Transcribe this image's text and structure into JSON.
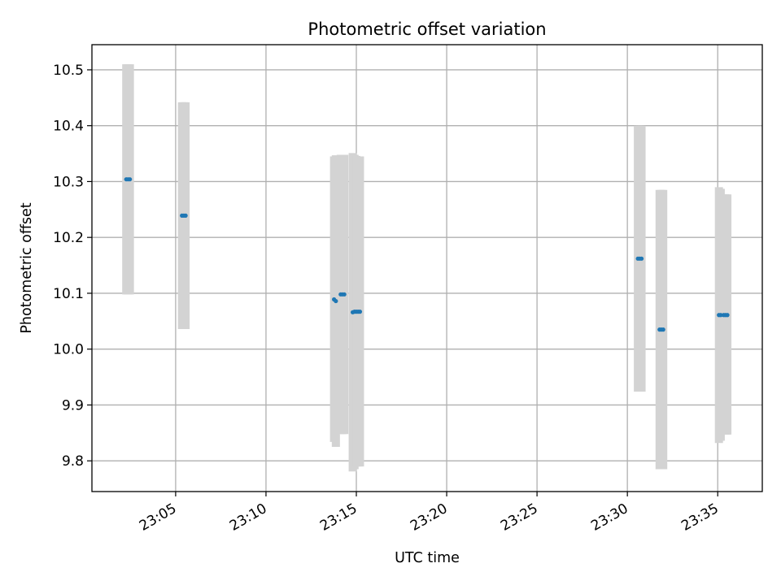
{
  "chart_data": {
    "type": "scatter",
    "title": "Photometric offset variation",
    "xlabel": "UTC time",
    "ylabel": "Photometric offset",
    "xlim": [
      "23:00:22",
      "23:37:28"
    ],
    "ylim": [
      9.745,
      10.545
    ],
    "x_ticks": [
      "23:05",
      "23:10",
      "23:15",
      "23:20",
      "23:25",
      "23:30",
      "23:35"
    ],
    "y_ticks": [
      "9.8",
      "9.9",
      "10.0",
      "10.1",
      "10.2",
      "10.3",
      "10.4",
      "10.5"
    ],
    "grid": true,
    "marker_color": "#1f77b4",
    "errorbar_color": "#d3d3d3",
    "points": [
      {
        "t": "23:02:16",
        "y": 10.304,
        "err_low": 10.098,
        "err_high": 10.51
      },
      {
        "t": "23:02:22",
        "y": 10.304,
        "err_low": 10.098,
        "err_high": 10.51
      },
      {
        "t": "23:02:28",
        "y": 10.304,
        "err_low": 10.098,
        "err_high": 10.51
      },
      {
        "t": "23:05:21",
        "y": 10.239,
        "err_low": 10.036,
        "err_high": 10.442
      },
      {
        "t": "23:05:27",
        "y": 10.239,
        "err_low": 10.036,
        "err_high": 10.442
      },
      {
        "t": "23:05:33",
        "y": 10.239,
        "err_low": 10.036,
        "err_high": 10.442
      },
      {
        "t": "23:13:46",
        "y": 10.089,
        "err_low": 9.834,
        "err_high": 10.345
      },
      {
        "t": "23:13:52",
        "y": 10.086,
        "err_low": 9.825,
        "err_high": 10.347
      },
      {
        "t": "23:14:08",
        "y": 10.098,
        "err_low": 9.848,
        "err_high": 10.348
      },
      {
        "t": "23:14:14",
        "y": 10.098,
        "err_low": 9.848,
        "err_high": 10.348
      },
      {
        "t": "23:14:20",
        "y": 10.098,
        "err_low": 9.848,
        "err_high": 10.348
      },
      {
        "t": "23:14:48",
        "y": 10.066,
        "err_low": 9.781,
        "err_high": 10.351
      },
      {
        "t": "23:14:54",
        "y": 10.067,
        "err_low": 9.785,
        "err_high": 10.348
      },
      {
        "t": "23:15:00",
        "y": 10.067,
        "err_low": 9.79,
        "err_high": 10.346
      },
      {
        "t": "23:15:06",
        "y": 10.067,
        "err_low": 9.79,
        "err_high": 10.345
      },
      {
        "t": "23:15:12",
        "y": 10.067,
        "err_low": 9.79,
        "err_high": 10.345
      },
      {
        "t": "23:30:35",
        "y": 10.162,
        "err_low": 9.924,
        "err_high": 10.4
      },
      {
        "t": "23:30:41",
        "y": 10.162,
        "err_low": 9.924,
        "err_high": 10.4
      },
      {
        "t": "23:30:47",
        "y": 10.162,
        "err_low": 9.924,
        "err_high": 10.4
      },
      {
        "t": "23:31:47",
        "y": 10.035,
        "err_low": 9.785,
        "err_high": 10.285
      },
      {
        "t": "23:31:53",
        "y": 10.035,
        "err_low": 9.785,
        "err_high": 10.285
      },
      {
        "t": "23:31:59",
        "y": 10.035,
        "err_low": 9.785,
        "err_high": 10.285
      },
      {
        "t": "23:35:04",
        "y": 10.061,
        "err_low": 9.832,
        "err_high": 10.29
      },
      {
        "t": "23:35:10",
        "y": 10.061,
        "err_low": 9.836,
        "err_high": 10.287
      },
      {
        "t": "23:35:20",
        "y": 10.061,
        "err_low": 9.847,
        "err_high": 10.277
      },
      {
        "t": "23:35:26",
        "y": 10.061,
        "err_low": 9.847,
        "err_high": 10.277
      },
      {
        "t": "23:35:32",
        "y": 10.061,
        "err_low": 9.847,
        "err_high": 10.277
      }
    ]
  }
}
